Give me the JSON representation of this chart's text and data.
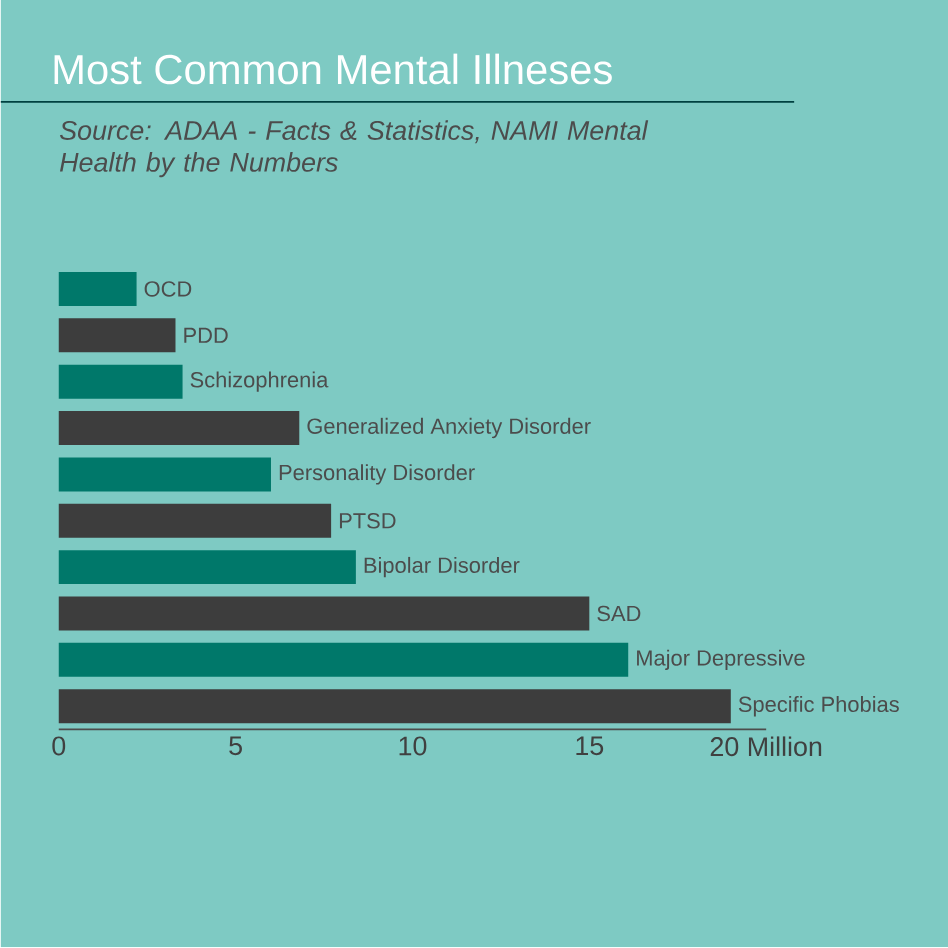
{
  "chart_data": {
    "type": "bar",
    "orientation": "horizontal",
    "title": "Most Common Mental Illneses",
    "annotations": [
      "Source: ADAA - Facts & Statistics, NAMI Mental Health by the Numbers"
    ],
    "categories": [
      "OCD",
      "PDD",
      "Schizophrenia",
      "Generalized Anxiety Disorder",
      "Personality Disorder",
      "PTSD",
      "Bipolar Disorder",
      "SAD",
      "Major Depressive",
      "Specific Phobias"
    ],
    "values": [
      2.2,
      3.3,
      3.5,
      6.8,
      6.0,
      7.7,
      8.4,
      15.0,
      16.1,
      19.0
    ],
    "colors": [
      "#00786a",
      "#3d3d3d",
      "#00786a",
      "#3d3d3d",
      "#00786a",
      "#3d3d3d",
      "#00786a",
      "#3d3d3d",
      "#00786a",
      "#3d3d3d"
    ],
    "xlim": [
      0,
      20
    ],
    "xticks": [
      0,
      5,
      10,
      15,
      {
        "value": 20,
        "label": "20 Million"
      }
    ]
  }
}
